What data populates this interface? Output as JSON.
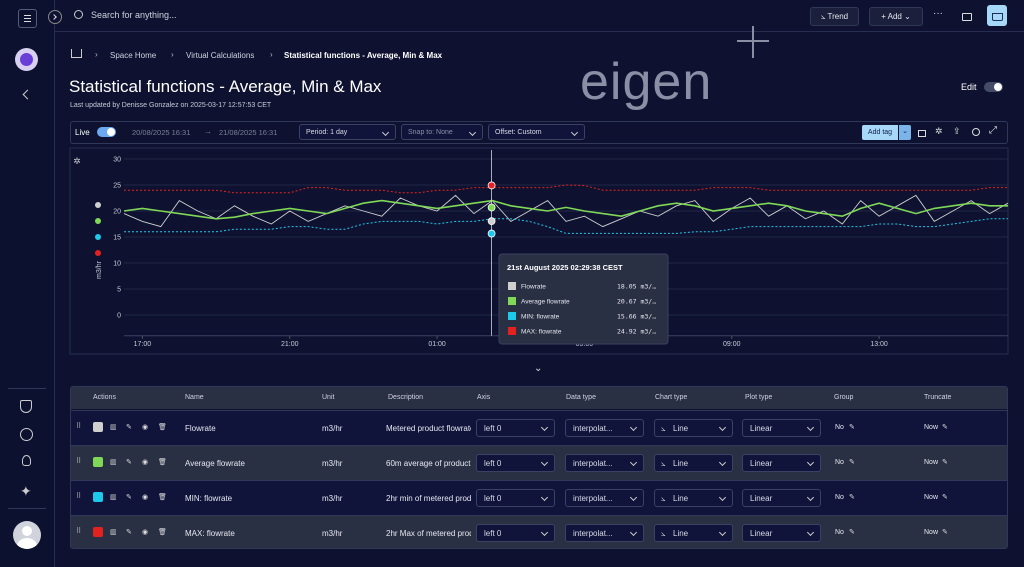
{
  "topbar": {
    "search_placeholder": "Search for anything...",
    "trend": "Trend",
    "add": "Add"
  },
  "breadcrumb": [
    "Space Home",
    "Virtual Calculations",
    "Statistical functions - Average, Min & Max"
  ],
  "header": {
    "title": "Statistical functions - Average, Min & Max",
    "subtitle": "Last updated by Denisse Gonzalez on 2025-03-17 12:57:53 CET",
    "edit": "Edit",
    "logo": "eigen"
  },
  "toolbar": {
    "live": "Live",
    "start": "20/08/2025 16:31",
    "end": "21/08/2025 16:31",
    "period": "Period: 1 day",
    "snap": "Snap to: None",
    "offset": "Offset: Custom",
    "add_tag": "Add tag"
  },
  "chart_data": {
    "type": "line",
    "y_label": "m3/hr",
    "ylim": [
      -4,
      31
    ],
    "yticks": [
      0,
      5,
      10,
      15,
      20,
      25,
      30
    ],
    "xlim": [
      16.5,
      40.5
    ],
    "xticks": [
      {
        "value": 17,
        "label": "17:00"
      },
      {
        "value": 21,
        "label": "21:00"
      },
      {
        "value": 25,
        "label": "01:00"
      },
      {
        "value": 29,
        "label": "05:00"
      },
      {
        "value": 33,
        "label": "09:00"
      },
      {
        "value": 37,
        "label": "13:00"
      }
    ],
    "grid": true,
    "x": [
      16.5,
      17,
      17.5,
      18,
      18.5,
      19,
      19.5,
      20,
      20.5,
      21,
      21.5,
      22,
      22.5,
      23,
      23.5,
      24,
      24.5,
      25,
      25.5,
      26,
      26.5,
      27,
      27.5,
      28,
      28.5,
      29,
      29.5,
      30,
      30.5,
      31,
      31.5,
      32,
      32.5,
      33,
      33.5,
      34,
      34.5,
      35,
      35.5,
      36,
      36.5,
      37,
      37.5,
      38,
      38.5,
      39,
      39.5,
      40,
      40.5
    ],
    "series": [
      {
        "name": "Flowrate",
        "color": "#cfcfcf",
        "style": "solid",
        "values": [
          19.5,
          18,
          17,
          22,
          20,
          18.5,
          21,
          19,
          17.5,
          20,
          18,
          19.5,
          21,
          20,
          19,
          22.5,
          21,
          20,
          23,
          19.5,
          22,
          18,
          20,
          22,
          18,
          19,
          17,
          18.5,
          20,
          19,
          21,
          22,
          18,
          20.5,
          22.5,
          19,
          21,
          18.5,
          20,
          17.5,
          22,
          19,
          21,
          23,
          18,
          20,
          22,
          19.5,
          21.5
        ]
      },
      {
        "name": "Average flowrate",
        "color": "#7fd957",
        "style": "solid",
        "values": [
          20,
          20.5,
          20,
          19.5,
          19,
          18.5,
          18.8,
          19.5,
          20,
          20.5,
          20,
          19.5,
          20.5,
          21.5,
          22,
          21.5,
          21,
          20.5,
          21,
          21.5,
          22,
          21,
          20.5,
          20,
          20.7,
          20,
          19.5,
          19,
          20,
          21,
          21.5,
          21,
          20,
          20.5,
          21,
          21.5,
          21,
          20,
          19.5,
          19,
          20.5,
          21.5,
          20.5,
          19.5,
          20.5,
          21,
          21.5,
          21,
          21
        ]
      },
      {
        "name": "MIN: flowrate",
        "color": "#1ec8ea",
        "style": "dotted",
        "values": [
          16,
          16,
          16,
          16,
          16,
          16,
          16.5,
          16.5,
          16.5,
          17,
          17,
          16.5,
          16.5,
          17.5,
          18,
          18,
          18,
          17.5,
          18,
          18,
          18.5,
          18.5,
          18,
          17,
          15.7,
          15.7,
          15.7,
          15.7,
          15.7,
          15.7,
          15.7,
          16,
          16,
          16.5,
          17,
          17,
          17,
          17,
          17,
          17,
          17,
          17.5,
          17.5,
          17,
          17,
          17.5,
          18,
          18.5,
          18.5
        ]
      },
      {
        "name": "MAX: flowrate",
        "color": "#e3221f",
        "style": "dotted",
        "values": [
          24,
          24,
          24,
          24,
          24,
          24,
          23.5,
          23.5,
          23.5,
          23.5,
          24.5,
          24.5,
          24,
          24,
          24,
          23.5,
          23.5,
          24,
          24,
          24.5,
          24.5,
          24.5,
          24.5,
          24.5,
          25,
          24.9,
          24,
          24,
          24,
          24,
          24,
          24,
          24.5,
          24.5,
          24.5,
          24,
          24,
          24,
          24,
          24,
          24,
          24,
          24,
          24,
          24,
          24,
          24,
          24.5,
          24.5
        ]
      }
    ],
    "cursor_x": 26.48,
    "tooltip_title": "21st August 2025 02:29:38 CEST",
    "cursor_values": [
      18.05,
      20.67,
      15.66,
      24.92
    ],
    "value_labels": [
      "18.05 m3/…",
      "20.67 m3/…",
      "15.66 m3/…",
      "24.92 m3/…"
    ]
  },
  "table": {
    "headers": [
      "Actions",
      "Name",
      "Unit",
      "Description",
      "Axis",
      "Data type",
      "Chart type",
      "Plot type",
      "Group",
      "Truncate"
    ],
    "rows": [
      [
        "Flowrate",
        "m3/hr",
        "Metered product flowrate",
        "left 0",
        "interpolat...",
        "Line",
        "Linear",
        "No",
        "Now"
      ],
      [
        "Average flowrate",
        "m3/hr",
        "60m average of product flowrate",
        "left 0",
        "interpolat...",
        "Line",
        "Linear",
        "No",
        "Now"
      ],
      [
        "MIN: flowrate",
        "m3/hr",
        "2hr min of metered product",
        "left 0",
        "interpolat...",
        "Line",
        "Linear",
        "No",
        "Now"
      ],
      [
        "MAX: flowrate",
        "m3/hr",
        "2hr Max of metered product",
        "left 0",
        "interpolat...",
        "Line",
        "Linear",
        "No",
        "Now"
      ]
    ]
  }
}
